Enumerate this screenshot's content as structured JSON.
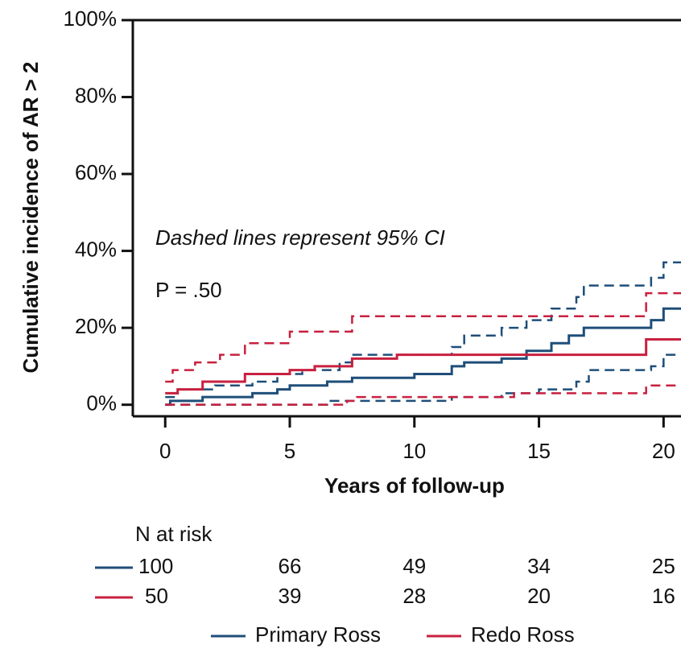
{
  "chart_data": {
    "type": "step",
    "y_label": "Cumulative incidence of AR > 2",
    "x_label": "Years of follow-up",
    "xlim": [
      -1.3,
      20.7
    ],
    "ylim": [
      -3,
      100
    ],
    "xticks": [
      0,
      5,
      10,
      15,
      20
    ],
    "yticks": [
      {
        "value": 0,
        "label": "0%"
      },
      {
        "value": 20,
        "label": "20%"
      },
      {
        "value": 40,
        "label": "40%"
      },
      {
        "value": 60,
        "label": "60%"
      },
      {
        "value": 80,
        "label": "80%"
      },
      {
        "value": 100,
        "label": "100%"
      }
    ],
    "annotations": [
      "Dashed lines represent 95% CI",
      "P = .50"
    ],
    "series": [
      {
        "name": "Primary Ross",
        "color": "#1f4e79",
        "x": [
          0,
          0.2,
          1.5,
          3.5,
          4.5,
          5,
          6.5,
          7.5,
          10,
          11.5,
          12,
          13.5,
          14.5,
          15.5,
          16.2,
          16.8,
          19.5,
          20,
          20.7
        ],
        "values": [
          0,
          1,
          2,
          3,
          4,
          5,
          6,
          7,
          8,
          10,
          11,
          12,
          14,
          16,
          18,
          20,
          22,
          25,
          25
        ],
        "ci_upper": {
          "x": [
            0,
            0.5,
            2,
            3.5,
            4.5,
            5.5,
            7,
            7.5,
            11.5,
            12,
            13.5,
            14.5,
            15.5,
            16.5,
            16.8,
            19.5,
            20,
            20.7
          ],
          "values": [
            2,
            4,
            5,
            6,
            8,
            9,
            11,
            13,
            15,
            18,
            20,
            22,
            25,
            28,
            31,
            33,
            37,
            37
          ]
        },
        "ci_lower": {
          "x": [
            0,
            6.5,
            11.5,
            13.5,
            15,
            16.5,
            17,
            19.5,
            20,
            20.7
          ],
          "values": [
            0,
            1,
            2,
            3,
            4,
            6,
            9,
            10,
            13,
            13
          ]
        }
      },
      {
        "name": "Redo Ross",
        "color": "#c8203f",
        "x": [
          0,
          0.5,
          1.5,
          3.2,
          5,
          6,
          7.5,
          9.3,
          19.3,
          20.7
        ],
        "values": [
          3,
          4,
          6,
          8,
          9,
          10,
          12,
          13,
          17,
          17
        ],
        "ci_upper": {
          "x": [
            0,
            0.3,
            1.2,
            2.2,
            3.2,
            5,
            7.5,
            19.3,
            20.7
          ],
          "values": [
            6,
            9,
            11,
            13,
            16,
            19,
            23,
            29,
            29
          ]
        },
        "ci_lower": {
          "x": [
            0,
            7.3,
            7.7,
            14,
            19.3,
            20.7
          ],
          "values": [
            0,
            1,
            2,
            3,
            5,
            5
          ]
        }
      }
    ],
    "risk_table": {
      "title": "N at risk",
      "rows": [
        [
          100,
          66,
          49,
          34,
          25
        ],
        [
          50,
          39,
          28,
          20,
          16
        ]
      ]
    }
  }
}
